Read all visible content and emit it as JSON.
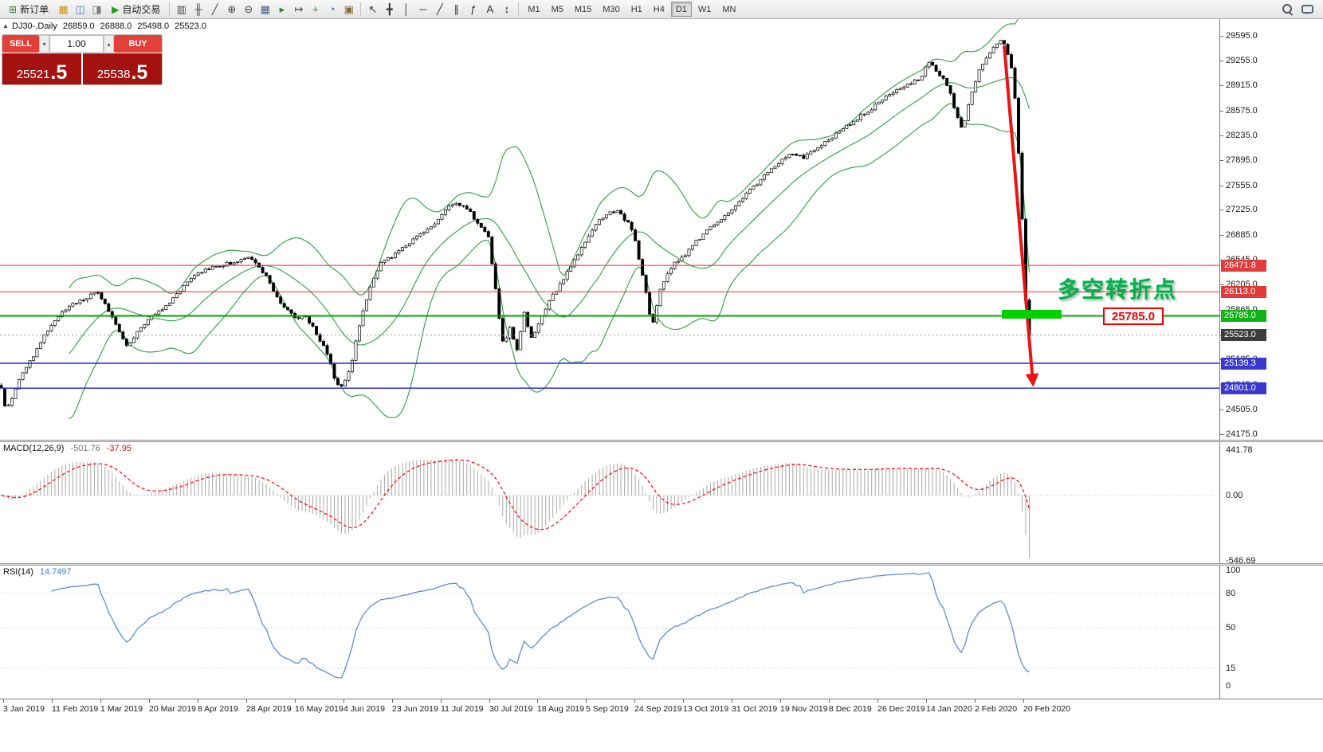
{
  "toolbar": {
    "new_order": {
      "label": "新订单",
      "glyph": "⊞"
    },
    "auto_trading": {
      "label": "自动交易",
      "glyph": "▶"
    },
    "left_icons": [
      {
        "name": "market-watch-icon",
        "glyph": "▦",
        "color": "#c8971e"
      },
      {
        "name": "navigator-icon",
        "glyph": "◫",
        "color": "#4a76c4"
      },
      {
        "name": "terminal-icon",
        "glyph": "◨",
        "color": "#7a7a7a"
      }
    ],
    "chart_icons": [
      {
        "name": "bar-chart-icon",
        "glyph": "▥",
        "color": "#444444"
      },
      {
        "name": "candlestick-chart-icon",
        "glyph": "╫",
        "color": "#444444"
      },
      {
        "name": "line-chart-icon",
        "glyph": "╱",
        "color": "#444444"
      },
      {
        "name": "zoom-in-icon",
        "glyph": "⊕",
        "color": "#444444"
      },
      {
        "name": "zoom-out-icon",
        "glyph": "⊖",
        "color": "#444444"
      },
      {
        "name": "tile-windows-icon",
        "glyph": "▦",
        "color": "#44608a"
      },
      {
        "name": "auto-scroll-icon",
        "glyph": "▸",
        "color": "#2a8a2a"
      },
      {
        "name": "chart-shift-icon",
        "glyph": "↦",
        "color": "#444444"
      },
      {
        "name": "indicators-icon",
        "glyph": "+",
        "color": "#18a018"
      },
      {
        "name": "periods-icon",
        "glyph": "◔",
        "color": "#3a6ea5"
      },
      {
        "name": "templates-icon",
        "glyph": "▣",
        "color": "#8a6a3a"
      }
    ],
    "object_icons": [
      {
        "name": "cursor-icon",
        "glyph": "↖",
        "color": "#333333"
      },
      {
        "name": "crosshair-icon",
        "glyph": "╋",
        "color": "#333333"
      },
      {
        "name": "vertical-line-icon",
        "glyph": "│",
        "color": "#333333"
      },
      {
        "name": "horizontal-line-icon",
        "glyph": "─",
        "color": "#333333"
      },
      {
        "name": "trendline-icon",
        "glyph": "╱",
        "color": "#333333"
      },
      {
        "name": "equidistant-channel-icon",
        "glyph": "∥",
        "color": "#333333"
      },
      {
        "name": "fibonacci-icon",
        "glyph": "ƒ",
        "color": "#333333"
      },
      {
        "name": "text-icon",
        "glyph": "A",
        "color": "#333333"
      },
      {
        "name": "arrows-icon",
        "glyph": "↕",
        "color": "#333333"
      }
    ],
    "timeframes": {
      "items": [
        "M1",
        "M5",
        "M15",
        "M30",
        "H1",
        "H4",
        "D1",
        "W1",
        "MN"
      ],
      "active": "D1"
    }
  },
  "chart": {
    "collapse_glyph": "▲",
    "symbol_title": "DJ30-,Daily",
    "ohlc": {
      "open": "26859.0",
      "high": "26888.0",
      "low": "25498.0",
      "close": "25523.0"
    },
    "trade_panel": {
      "sell_label": "SELL",
      "buy_label": "BUY",
      "volume": "1.00",
      "volume_down_glyph": "▾",
      "volume_up_glyph": "▴",
      "sell_price_main": "25521",
      "sell_price_big": ".5",
      "buy_price_main": "25538",
      "buy_price_big": ".5"
    },
    "annotation_text": "多空转折点",
    "level_label": "25785.0",
    "current_price": "25523.0",
    "hlines": [
      {
        "price": "26471.8",
        "value": 26471.8,
        "color": "#ff2a2a",
        "badge": "#e03c3c",
        "width": 1
      },
      {
        "price": "26113.0",
        "value": 26113.0,
        "color": "#ff2a2a",
        "badge": "#e03c3c",
        "width": 1
      },
      {
        "price": "25785.0",
        "value": 25785.0,
        "color": "#00a400",
        "badge": "#11b211",
        "width": 2
      },
      {
        "price": "25139.3",
        "value": 25139.3,
        "color": "#2a2ad0",
        "badge": "#3939cf",
        "width": 1.5
      },
      {
        "price": "24801.0",
        "value": 24801.0,
        "color": "#2a2ad0",
        "badge": "#3939cf",
        "width": 1.5
      }
    ],
    "axis_labels": [
      "29595.0",
      "29255.0",
      "28915.0",
      "28575.0",
      "28235.0",
      "27895.0",
      "27555.0",
      "27225.0",
      "26885.0",
      "26545.0",
      "26205.0",
      "25865.0",
      "25525.0",
      "25185.0",
      "24845.0",
      "24505.0",
      "24175.0"
    ]
  },
  "macd": {
    "title": "MACD(12,26,9)",
    "value_main": "-501.76",
    "value_signal": "-37.95",
    "axis": [
      "441.78",
      "0.00",
      "-546.69"
    ]
  },
  "rsi": {
    "title": "RSI(14)",
    "value": "14.7497",
    "axis": [
      "100",
      "80",
      "50",
      "15",
      "0"
    ],
    "levels": [
      80,
      50,
      15
    ]
  },
  "time_axis": {
    "dates": [
      "3 Jan 2019",
      "11 Feb 2019",
      "1 Mar 2019",
      "20 Mar 2019",
      "8 Apr 2019",
      "28 Apr 2019",
      "16 May 2019",
      "4 Jun 2019",
      "23 Jun 2019",
      "11 Jul 2019",
      "30 Jul 2019",
      "18 Aug 2019",
      "5 Sep 2019",
      "24 Sep 2019",
      "13 Oct 2019",
      "31 Oct 2019",
      "19 Nov 2019",
      "8 Dec 2019",
      "26 Dec 2019",
      "14 Jan 2020",
      "2 Feb 2020",
      "20 Feb 2020"
    ]
  },
  "chart_data": {
    "type": "candlestick",
    "symbol": "DJ30",
    "timeframe": "Daily",
    "date_range": [
      "3 Jan 2019",
      "20 Feb 2020"
    ],
    "ylim": [
      24175,
      29595
    ],
    "last_ohlc": {
      "open": 26859.0,
      "high": 26888.0,
      "low": 25498.0,
      "close": 25523.0
    },
    "levels": [
      26471.8,
      26113.0,
      25785.0,
      25139.3,
      24801.0
    ],
    "candle_count": 288,
    "overlays": {
      "bollinger": {
        "period": 20,
        "deviation": 2
      }
    },
    "indicators": [
      {
        "type": "MACD",
        "params": [
          12,
          26,
          9
        ],
        "last_values": [
          -501.76,
          -37.95
        ],
        "range": [
          441.78,
          -546.69
        ]
      },
      {
        "type": "RSI",
        "params": [
          14
        ],
        "last_value": 14.7497,
        "levels": [
          80,
          50,
          15
        ]
      }
    ],
    "price_path": [
      [
        0,
        24850
      ],
      [
        8,
        24480
      ],
      [
        18,
        24750
      ],
      [
        30,
        25050
      ],
      [
        42,
        25250
      ],
      [
        55,
        25500
      ],
      [
        62,
        25600
      ],
      [
        72,
        25750
      ],
      [
        85,
        25900
      ],
      [
        100,
        26000
      ],
      [
        112,
        26050
      ],
      [
        122,
        26100
      ],
      [
        132,
        25950
      ],
      [
        142,
        25750
      ],
      [
        152,
        25500
      ],
      [
        160,
        25380
      ],
      [
        172,
        25550
      ],
      [
        185,
        25720
      ],
      [
        198,
        25850
      ],
      [
        212,
        25950
      ],
      [
        228,
        26150
      ],
      [
        245,
        26350
      ],
      [
        262,
        26420
      ],
      [
        278,
        26480
      ],
      [
        295,
        26520
      ],
      [
        310,
        26600
      ],
      [
        322,
        26500
      ],
      [
        335,
        26300
      ],
      [
        350,
        26000
      ],
      [
        362,
        25850
      ],
      [
        372,
        25750
      ],
      [
        382,
        25800
      ],
      [
        392,
        25650
      ],
      [
        402,
        25450
      ],
      [
        412,
        25250
      ],
      [
        422,
        24850
      ],
      [
        430,
        24800
      ],
      [
        440,
        25100
      ],
      [
        452,
        25700
      ],
      [
        465,
        26200
      ],
      [
        478,
        26500
      ],
      [
        492,
        26600
      ],
      [
        505,
        26700
      ],
      [
        520,
        26850
      ],
      [
        535,
        26950
      ],
      [
        550,
        27100
      ],
      [
        562,
        27250
      ],
      [
        575,
        27320
      ],
      [
        590,
        27200
      ],
      [
        602,
        27000
      ],
      [
        612,
        26900
      ],
      [
        620,
        26300
      ],
      [
        626,
        25750
      ],
      [
        632,
        25350
      ],
      [
        640,
        25650
      ],
      [
        648,
        25300
      ],
      [
        658,
        25850
      ],
      [
        666,
        25450
      ],
      [
        676,
        25700
      ],
      [
        690,
        26000
      ],
      [
        702,
        26200
      ],
      [
        716,
        26450
      ],
      [
        731,
        26750
      ],
      [
        748,
        27050
      ],
      [
        762,
        27180
      ],
      [
        775,
        27220
      ],
      [
        788,
        27050
      ],
      [
        795,
        26900
      ],
      [
        805,
        26400
      ],
      [
        818,
        25650
      ],
      [
        830,
        26200
      ],
      [
        845,
        26500
      ],
      [
        858,
        26600
      ],
      [
        872,
        26780
      ],
      [
        888,
        26950
      ],
      [
        905,
        27080
      ],
      [
        922,
        27280
      ],
      [
        940,
        27480
      ],
      [
        958,
        27680
      ],
      [
        975,
        27860
      ],
      [
        992,
        27990
      ],
      [
        1008,
        27940
      ],
      [
        1025,
        28060
      ],
      [
        1040,
        28180
      ],
      [
        1058,
        28320
      ],
      [
        1075,
        28470
      ],
      [
        1092,
        28580
      ],
      [
        1108,
        28740
      ],
      [
        1125,
        28870
      ],
      [
        1140,
        28950
      ],
      [
        1155,
        29000
      ],
      [
        1165,
        29250
      ],
      [
        1172,
        29150
      ],
      [
        1180,
        29050
      ],
      [
        1190,
        28900
      ],
      [
        1200,
        28500
      ],
      [
        1208,
        28300
      ],
      [
        1213,
        28600
      ],
      [
        1220,
        28850
      ],
      [
        1228,
        29100
      ],
      [
        1236,
        29250
      ],
      [
        1244,
        29400
      ],
      [
        1252,
        29500
      ],
      [
        1258,
        29530
      ],
      [
        1263,
        29400
      ],
      [
        1268,
        29220
      ],
      [
        1272,
        28950
      ],
      [
        1276,
        28400
      ],
      [
        1280,
        27600
      ],
      [
        1284,
        26800
      ],
      [
        1287,
        26000
      ],
      [
        1290,
        25523
      ]
    ],
    "colors": {
      "candle_up": "#ffffff",
      "candle_down": "#000000",
      "wick": "#000000",
      "bollinger": "#2f9e44",
      "macd_hist": "#a8a8a8",
      "macd_signal": "#ff0000",
      "rsi_line": "#5b8fd0"
    }
  }
}
